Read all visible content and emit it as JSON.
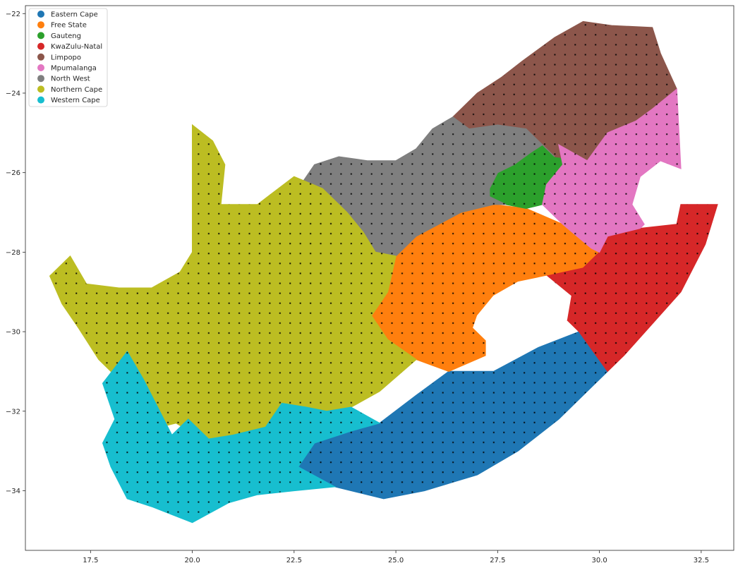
{
  "chart_data": {
    "type": "map",
    "title": "",
    "xlabel": "",
    "ylabel": "",
    "xlim": [
      15.9,
      33.3
    ],
    "ylim": [
      -35.5,
      -21.8
    ],
    "x_ticks": [
      17.5,
      20.0,
      22.5,
      25.0,
      27.5,
      30.0,
      32.5
    ],
    "y_ticks": [
      -22,
      -24,
      -26,
      -28,
      -30,
      -32,
      -34
    ],
    "x_tick_labels": [
      "17.5",
      "20.0",
      "22.5",
      "25.0",
      "27.5",
      "30.0",
      "32.5"
    ],
    "y_tick_labels": [
      "−22",
      "−24",
      "−26",
      "−28",
      "−30",
      "−32",
      "−34"
    ],
    "legend_position": "top-left",
    "grid": false,
    "point_grid": {
      "color": "#000000",
      "x_step": 0.25,
      "y_step": 0.25
    },
    "lesotho_hole": [
      [
        27.0,
        -29.6
      ],
      [
        27.4,
        -29.1
      ],
      [
        28.0,
        -28.75
      ],
      [
        28.7,
        -28.6
      ],
      [
        29.3,
        -29.1
      ],
      [
        29.2,
        -29.7
      ],
      [
        28.6,
        -30.2
      ],
      [
        28.1,
        -30.5
      ],
      [
        27.5,
        -30.5
      ],
      [
        27.2,
        -30.2
      ],
      [
        26.9,
        -29.9
      ]
    ],
    "regions": [
      {
        "name": "Eastern Cape",
        "color": "#1f77b4",
        "polygon": [
          [
            22.6,
            -33.4
          ],
          [
            23.0,
            -32.8
          ],
          [
            23.9,
            -32.5
          ],
          [
            24.6,
            -32.3
          ],
          [
            25.5,
            -31.6
          ],
          [
            26.3,
            -31.0
          ],
          [
            27.4,
            -31.0
          ],
          [
            28.5,
            -30.4
          ],
          [
            29.5,
            -30.0
          ],
          [
            30.2,
            -31.0
          ],
          [
            29.8,
            -31.4
          ],
          [
            29.0,
            -32.2
          ],
          [
            28.0,
            -33.0
          ],
          [
            27.0,
            -33.6
          ],
          [
            25.7,
            -34.0
          ],
          [
            24.7,
            -34.2
          ],
          [
            23.5,
            -33.9
          ],
          [
            22.6,
            -33.4
          ]
        ]
      },
      {
        "name": "Free State",
        "color": "#ff7f0e",
        "polygon": [
          [
            24.4,
            -29.6
          ],
          [
            24.8,
            -29.0
          ],
          [
            25.0,
            -28.1
          ],
          [
            25.5,
            -27.6
          ],
          [
            26.6,
            -27.0
          ],
          [
            27.4,
            -26.8
          ],
          [
            28.2,
            -26.9
          ],
          [
            29.1,
            -27.3
          ],
          [
            29.8,
            -27.9
          ],
          [
            30.0,
            -28.0
          ],
          [
            29.6,
            -28.4
          ],
          [
            28.7,
            -28.6
          ],
          [
            28.0,
            -28.75
          ],
          [
            27.4,
            -29.1
          ],
          [
            27.0,
            -29.6
          ],
          [
            26.9,
            -29.9
          ],
          [
            27.2,
            -30.2
          ],
          [
            27.2,
            -30.6
          ],
          [
            26.3,
            -31.0
          ],
          [
            25.5,
            -30.7
          ],
          [
            24.8,
            -30.2
          ],
          [
            24.4,
            -29.6
          ]
        ]
      },
      {
        "name": "Gauteng",
        "color": "#2ca02c",
        "polygon": [
          [
            27.3,
            -26.4
          ],
          [
            27.5,
            -26.0
          ],
          [
            27.9,
            -25.8
          ],
          [
            28.3,
            -25.5
          ],
          [
            28.6,
            -25.3
          ],
          [
            29.0,
            -25.3
          ],
          [
            29.1,
            -25.8
          ],
          [
            28.7,
            -26.3
          ],
          [
            28.6,
            -26.8
          ],
          [
            28.2,
            -26.9
          ],
          [
            27.7,
            -26.8
          ],
          [
            27.3,
            -26.6
          ],
          [
            27.3,
            -26.4
          ]
        ]
      },
      {
        "name": "KwaZulu-Natal",
        "color": "#d62728",
        "polygon": [
          [
            29.6,
            -28.4
          ],
          [
            30.0,
            -28.0
          ],
          [
            30.2,
            -27.6
          ],
          [
            31.0,
            -27.4
          ],
          [
            31.9,
            -27.3
          ],
          [
            32.0,
            -26.8
          ],
          [
            32.9,
            -26.8
          ],
          [
            32.6,
            -27.8
          ],
          [
            32.0,
            -29.0
          ],
          [
            31.3,
            -29.8
          ],
          [
            30.6,
            -30.6
          ],
          [
            30.2,
            -31.0
          ],
          [
            29.5,
            -30.0
          ],
          [
            29.2,
            -29.7
          ],
          [
            29.3,
            -29.1
          ],
          [
            28.7,
            -28.6
          ],
          [
            29.6,
            -28.4
          ]
        ]
      },
      {
        "name": "Limpopo",
        "color": "#8c564b",
        "polygon": [
          [
            26.4,
            -24.6
          ],
          [
            27.0,
            -24.0
          ],
          [
            27.6,
            -23.6
          ],
          [
            28.1,
            -23.2
          ],
          [
            28.9,
            -22.6
          ],
          [
            29.6,
            -22.2
          ],
          [
            30.3,
            -22.3
          ],
          [
            31.3,
            -22.35
          ],
          [
            31.5,
            -23.0
          ],
          [
            31.9,
            -23.9
          ],
          [
            31.3,
            -24.4
          ],
          [
            30.9,
            -24.7
          ],
          [
            30.2,
            -25.0
          ],
          [
            29.7,
            -25.7
          ],
          [
            28.9,
            -25.6
          ],
          [
            28.2,
            -24.9
          ],
          [
            27.5,
            -24.8
          ],
          [
            26.8,
            -24.9
          ],
          [
            26.4,
            -24.6
          ]
        ]
      },
      {
        "name": "Mpumalanga",
        "color": "#e377c2",
        "polygon": [
          [
            29.0,
            -25.3
          ],
          [
            29.7,
            -25.7
          ],
          [
            30.2,
            -25.0
          ],
          [
            30.9,
            -24.7
          ],
          [
            31.3,
            -24.4
          ],
          [
            31.9,
            -23.9
          ],
          [
            32.0,
            -25.9
          ],
          [
            31.5,
            -25.7
          ],
          [
            31.0,
            -26.1
          ],
          [
            30.8,
            -26.8
          ],
          [
            31.1,
            -27.3
          ],
          [
            31.0,
            -27.4
          ],
          [
            30.2,
            -27.6
          ],
          [
            30.0,
            -28.0
          ],
          [
            29.8,
            -27.9
          ],
          [
            29.1,
            -27.3
          ],
          [
            28.6,
            -26.8
          ],
          [
            28.7,
            -26.3
          ],
          [
            29.1,
            -25.8
          ],
          [
            29.0,
            -25.3
          ]
        ]
      },
      {
        "name": "North West",
        "color": "#7f7f7f",
        "polygon": [
          [
            22.6,
            -26.4
          ],
          [
            23.0,
            -25.8
          ],
          [
            23.6,
            -25.6
          ],
          [
            24.3,
            -25.7
          ],
          [
            25.0,
            -25.7
          ],
          [
            25.5,
            -25.4
          ],
          [
            25.9,
            -24.9
          ],
          [
            26.4,
            -24.6
          ],
          [
            26.8,
            -24.9
          ],
          [
            27.5,
            -24.8
          ],
          [
            28.2,
            -24.9
          ],
          [
            28.9,
            -25.6
          ],
          [
            28.6,
            -25.3
          ],
          [
            28.3,
            -25.5
          ],
          [
            27.9,
            -25.8
          ],
          [
            27.5,
            -26.0
          ],
          [
            27.3,
            -26.4
          ],
          [
            27.3,
            -26.6
          ],
          [
            27.7,
            -26.8
          ],
          [
            27.4,
            -26.8
          ],
          [
            26.6,
            -27.0
          ],
          [
            25.5,
            -27.6
          ],
          [
            25.0,
            -28.1
          ],
          [
            24.5,
            -28.0
          ],
          [
            24.2,
            -27.5
          ],
          [
            23.8,
            -27.0
          ],
          [
            23.2,
            -26.4
          ],
          [
            22.6,
            -26.4
          ]
        ]
      },
      {
        "name": "Northern Cape",
        "color": "#bcbd22",
        "polygon": [
          [
            16.5,
            -28.6
          ],
          [
            17.0,
            -28.1
          ],
          [
            17.4,
            -28.8
          ],
          [
            18.2,
            -28.9
          ],
          [
            19.0,
            -28.9
          ],
          [
            19.7,
            -28.5
          ],
          [
            20.0,
            -28.0
          ],
          [
            20.0,
            -24.8
          ],
          [
            20.5,
            -25.2
          ],
          [
            20.8,
            -25.8
          ],
          [
            20.7,
            -26.8
          ],
          [
            21.6,
            -26.8
          ],
          [
            22.5,
            -26.1
          ],
          [
            23.2,
            -26.4
          ],
          [
            23.8,
            -27.0
          ],
          [
            24.2,
            -27.5
          ],
          [
            24.5,
            -28.0
          ],
          [
            25.0,
            -28.1
          ],
          [
            24.8,
            -29.0
          ],
          [
            24.4,
            -29.6
          ],
          [
            24.8,
            -30.2
          ],
          [
            25.5,
            -30.7
          ],
          [
            24.6,
            -31.5
          ],
          [
            23.9,
            -31.9
          ],
          [
            23.3,
            -32.0
          ],
          [
            22.8,
            -31.9
          ],
          [
            22.2,
            -32.2
          ],
          [
            21.6,
            -32.5
          ],
          [
            21.0,
            -32.7
          ],
          [
            20.5,
            -32.7
          ],
          [
            20.1,
            -32.6
          ],
          [
            19.6,
            -32.3
          ],
          [
            19.2,
            -32.4
          ],
          [
            18.8,
            -32.0
          ],
          [
            18.3,
            -31.3
          ],
          [
            17.7,
            -30.7
          ],
          [
            17.2,
            -29.9
          ],
          [
            16.8,
            -29.3
          ],
          [
            16.5,
            -28.6
          ]
        ]
      },
      {
        "name": "Western Cape",
        "color": "#17becf",
        "polygon": [
          [
            17.8,
            -31.3
          ],
          [
            18.4,
            -30.5
          ],
          [
            18.8,
            -31.2
          ],
          [
            19.2,
            -32.0
          ],
          [
            19.5,
            -32.6
          ],
          [
            19.9,
            -32.2
          ],
          [
            20.4,
            -32.7
          ],
          [
            21.0,
            -32.6
          ],
          [
            21.8,
            -32.4
          ],
          [
            22.2,
            -31.8
          ],
          [
            22.8,
            -31.9
          ],
          [
            23.3,
            -32.0
          ],
          [
            23.9,
            -31.9
          ],
          [
            24.6,
            -32.3
          ],
          [
            23.9,
            -32.5
          ],
          [
            23.0,
            -32.8
          ],
          [
            22.6,
            -33.4
          ],
          [
            23.5,
            -33.9
          ],
          [
            22.5,
            -34.0
          ],
          [
            21.6,
            -34.1
          ],
          [
            20.9,
            -34.3
          ],
          [
            20.0,
            -34.8
          ],
          [
            19.5,
            -34.6
          ],
          [
            19.0,
            -34.4
          ],
          [
            18.4,
            -34.2
          ],
          [
            18.0,
            -33.4
          ],
          [
            17.8,
            -32.8
          ],
          [
            18.1,
            -32.2
          ],
          [
            17.8,
            -31.3
          ]
        ]
      }
    ]
  }
}
